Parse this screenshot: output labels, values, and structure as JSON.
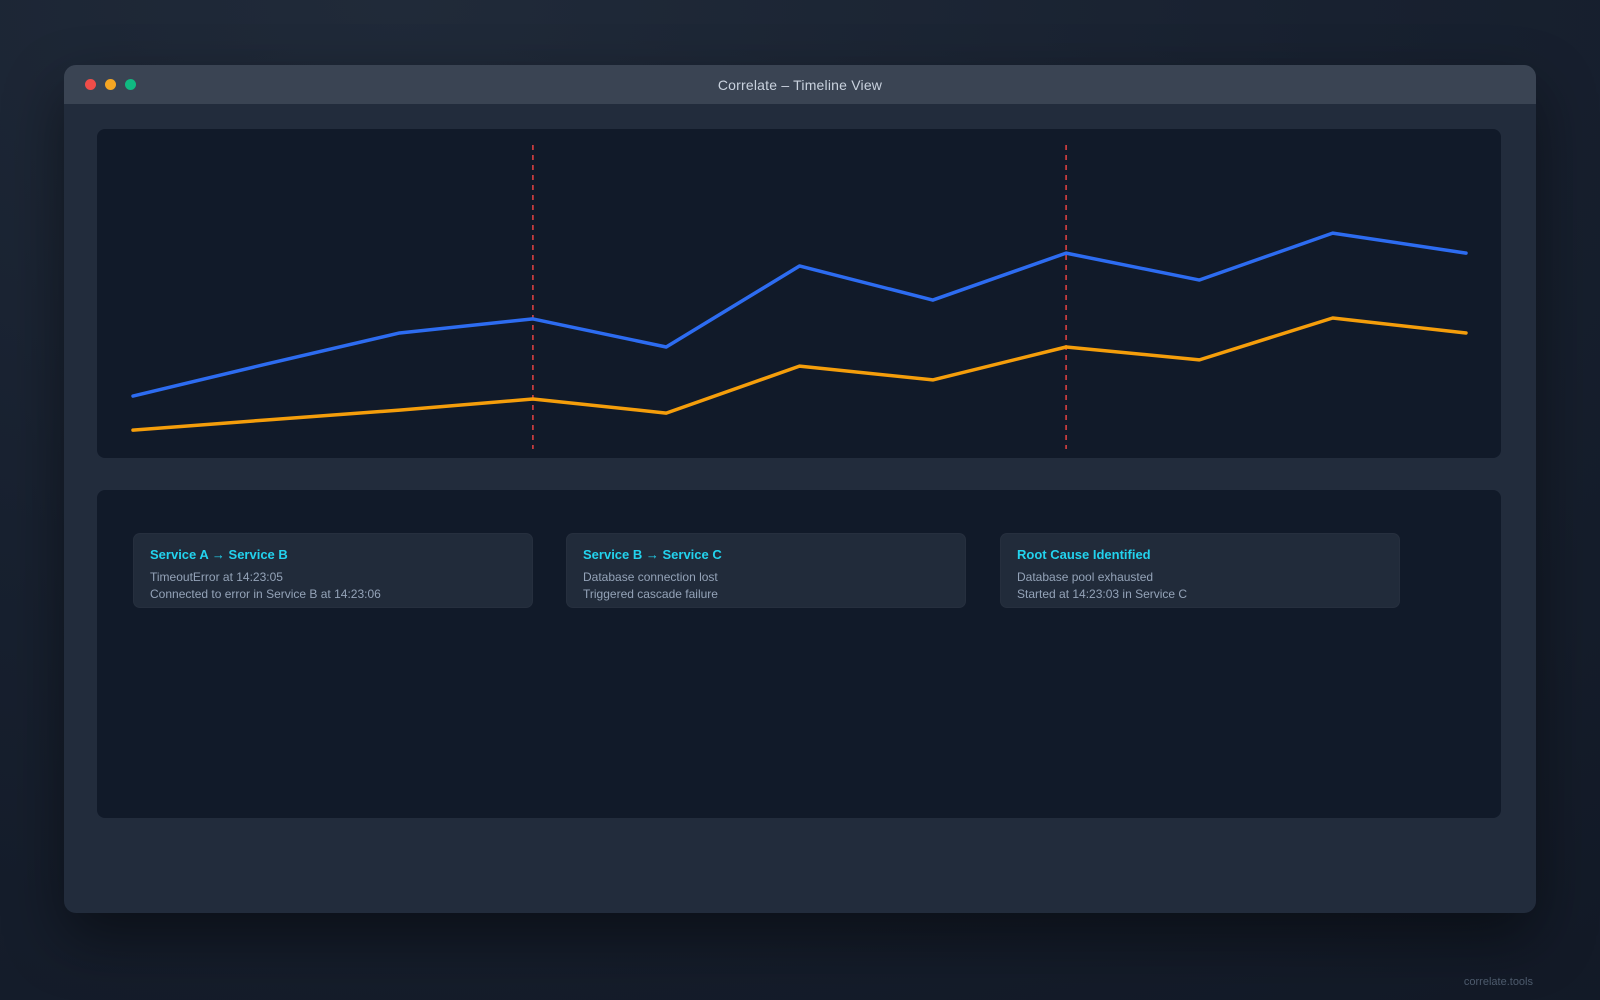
{
  "window": {
    "title": "Correlate – Timeline View",
    "traffic_lights": [
      {
        "name": "close",
        "color": "#ef4d49"
      },
      {
        "name": "minimize",
        "color": "#f5a623"
      },
      {
        "name": "maximize",
        "color": "#10b981"
      }
    ]
  },
  "chart_data": {
    "type": "line",
    "title": "",
    "xlabel": "",
    "ylabel": "",
    "x": [
      0,
      1,
      2,
      3,
      4,
      5,
      6,
      7,
      8,
      9,
      10
    ],
    "series": [
      {
        "name": "blue-series",
        "color": "#2d6cf1",
        "values": [
          14.7,
          25.4,
          35.8,
          40.5,
          31.1,
          58.2,
          46.8,
          62.5,
          53.5,
          69.2,
          62.5
        ]
      },
      {
        "name": "orange-series",
        "color": "#f59e0b",
        "values": [
          3.3,
          6.7,
          10.0,
          13.7,
          9.0,
          24.7,
          20.1,
          31.1,
          26.8,
          40.8,
          35.8
        ]
      }
    ],
    "event_markers": [
      {
        "x_index": 3,
        "color": "#ef4444",
        "style": "dashed-vertical"
      },
      {
        "x_index": 7,
        "color": "#ef4444",
        "style": "dashed-vertical"
      }
    ],
    "ylim": [
      0,
      100
    ],
    "grid": false,
    "legend": false,
    "axes_visible": false
  },
  "cards": [
    {
      "title": "Service A → Service B",
      "line1": "TimeoutError at 14:23:05",
      "line2": "Connected to error in Service B at 14:23:06"
    },
    {
      "title": "Service B → Service C",
      "line1": "Database connection lost",
      "line2": "Triggered cascade failure"
    },
    {
      "title": "Root Cause Identified",
      "line1": "Database pool exhausted",
      "line2": "Started at 14:23:03 in Service C"
    }
  ],
  "footer": {
    "brand": "correlate.tools"
  },
  "colors": {
    "page_background": "#182130",
    "window_background": "#222c3c",
    "titlebar_background": "#3a4453",
    "panel_background": "#111a29",
    "card_background": "#212b3a",
    "accent_cyan": "#22d3ee",
    "accent_blue": "#2d6cf1",
    "accent_orange": "#f59e0b",
    "accent_red": "#ef4444",
    "text_muted": "#94a3b8"
  }
}
